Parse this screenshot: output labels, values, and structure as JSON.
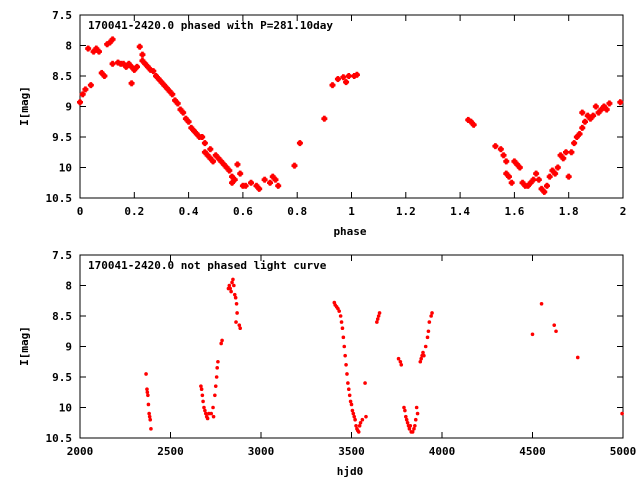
{
  "colors": {
    "points": "#ff0000",
    "frame": "#000000",
    "background": "#ffffff"
  },
  "chart_data": [
    {
      "type": "scatter",
      "title": "170041-2420.0 phased with P=281.10day",
      "xlabel": "phase",
      "ylabel": "I[mag]",
      "xlim": [
        0,
        2
      ],
      "ylim": [
        7.5,
        10.5
      ],
      "y_inverted": true,
      "grid": false,
      "x_ticks": [
        0,
        0.2,
        0.4,
        0.6,
        0.8,
        1,
        1.2,
        1.4,
        1.6,
        1.8,
        2
      ],
      "x_tick_labels": [
        "0",
        "0.2",
        "0.4",
        "0.6",
        "0.8",
        "1",
        "1.2",
        "1.4",
        "1.6",
        "1.8",
        "2"
      ],
      "y_ticks": [
        7.5,
        8,
        8.5,
        9,
        9.5,
        10,
        10.5
      ],
      "y_tick_labels": [
        "7.5",
        "8",
        "8.5",
        "9",
        "9.5",
        "10",
        "10.5"
      ],
      "marker": "cross",
      "points": [
        [
          0.0,
          8.93
        ],
        [
          0.01,
          8.8
        ],
        [
          0.02,
          8.72
        ],
        [
          0.03,
          8.05
        ],
        [
          0.04,
          8.65
        ],
        [
          0.05,
          8.1
        ],
        [
          0.06,
          8.05
        ],
        [
          0.07,
          8.1
        ],
        [
          0.08,
          8.45
        ],
        [
          0.09,
          8.5
        ],
        [
          0.1,
          7.98
        ],
        [
          0.12,
          7.9
        ],
        [
          0.11,
          7.95
        ],
        [
          0.12,
          8.3
        ],
        [
          0.14,
          8.28
        ],
        [
          0.15,
          8.3
        ],
        [
          0.16,
          8.3
        ],
        [
          0.17,
          8.35
        ],
        [
          0.18,
          8.3
        ],
        [
          0.19,
          8.62
        ],
        [
          0.19,
          8.35
        ],
        [
          0.2,
          8.4
        ],
        [
          0.21,
          8.35
        ],
        [
          0.22,
          8.02
        ],
        [
          0.23,
          8.15
        ],
        [
          0.23,
          8.25
        ],
        [
          0.24,
          8.3
        ],
        [
          0.25,
          8.35
        ],
        [
          0.26,
          8.4
        ],
        [
          0.27,
          8.42
        ],
        [
          0.28,
          8.5
        ],
        [
          0.29,
          8.55
        ],
        [
          0.3,
          8.6
        ],
        [
          0.31,
          8.65
        ],
        [
          0.32,
          8.7
        ],
        [
          0.33,
          8.75
        ],
        [
          0.34,
          8.8
        ],
        [
          0.35,
          8.9
        ],
        [
          0.36,
          8.95
        ],
        [
          0.37,
          9.05
        ],
        [
          0.38,
          9.1
        ],
        [
          0.39,
          9.2
        ],
        [
          0.4,
          9.25
        ],
        [
          0.41,
          9.35
        ],
        [
          0.42,
          9.4
        ],
        [
          0.43,
          9.45
        ],
        [
          0.44,
          9.5
        ],
        [
          0.45,
          9.5
        ],
        [
          0.46,
          9.6
        ],
        [
          0.46,
          9.75
        ],
        [
          0.47,
          9.8
        ],
        [
          0.48,
          9.7
        ],
        [
          0.48,
          9.85
        ],
        [
          0.49,
          9.9
        ],
        [
          0.5,
          9.8
        ],
        [
          0.51,
          9.85
        ],
        [
          0.52,
          9.9
        ],
        [
          0.53,
          9.95
        ],
        [
          0.54,
          10.0
        ],
        [
          0.55,
          10.05
        ],
        [
          0.56,
          10.15
        ],
        [
          0.56,
          10.25
        ],
        [
          0.57,
          10.2
        ],
        [
          0.58,
          9.95
        ],
        [
          0.59,
          10.1
        ],
        [
          0.6,
          10.3
        ],
        [
          0.61,
          10.3
        ],
        [
          0.63,
          10.25
        ],
        [
          0.65,
          10.3
        ],
        [
          0.66,
          10.35
        ],
        [
          0.68,
          10.2
        ],
        [
          0.7,
          10.25
        ],
        [
          0.71,
          10.15
        ],
        [
          0.72,
          10.2
        ],
        [
          0.73,
          10.3
        ],
        [
          0.79,
          9.97
        ],
        [
          0.81,
          9.6
        ],
        [
          0.9,
          9.2
        ],
        [
          0.93,
          8.65
        ],
        [
          0.95,
          8.55
        ],
        [
          0.97,
          8.52
        ],
        [
          0.98,
          8.6
        ],
        [
          0.99,
          8.5
        ],
        [
          1.01,
          8.5
        ],
        [
          1.02,
          8.48
        ],
        [
          1.43,
          9.22
        ],
        [
          1.44,
          9.25
        ],
        [
          1.45,
          9.3
        ],
        [
          1.53,
          9.65
        ],
        [
          1.55,
          9.7
        ],
        [
          1.56,
          9.8
        ],
        [
          1.57,
          9.9
        ],
        [
          1.57,
          10.1
        ],
        [
          1.58,
          10.15
        ],
        [
          1.59,
          10.25
        ],
        [
          1.6,
          9.9
        ],
        [
          1.61,
          9.95
        ],
        [
          1.62,
          10.0
        ],
        [
          1.63,
          10.25
        ],
        [
          1.64,
          10.3
        ],
        [
          1.65,
          10.3
        ],
        [
          1.66,
          10.25
        ],
        [
          1.67,
          10.2
        ],
        [
          1.68,
          10.1
        ],
        [
          1.69,
          10.2
        ],
        [
          1.7,
          10.35
        ],
        [
          1.71,
          10.4
        ],
        [
          1.72,
          10.3
        ],
        [
          1.73,
          10.15
        ],
        [
          1.74,
          10.05
        ],
        [
          1.75,
          10.1
        ],
        [
          1.76,
          10.0
        ],
        [
          1.77,
          9.8
        ],
        [
          1.78,
          9.85
        ],
        [
          1.79,
          9.75
        ],
        [
          1.8,
          10.15
        ],
        [
          1.81,
          9.75
        ],
        [
          1.82,
          9.6
        ],
        [
          1.83,
          9.5
        ],
        [
          1.84,
          9.45
        ],
        [
          1.85,
          9.35
        ],
        [
          1.85,
          9.1
        ],
        [
          1.86,
          9.25
        ],
        [
          1.87,
          9.15
        ],
        [
          1.88,
          9.2
        ],
        [
          1.89,
          9.15
        ],
        [
          1.9,
          9.0
        ],
        [
          1.91,
          9.1
        ],
        [
          1.92,
          9.05
        ],
        [
          1.93,
          9.0
        ],
        [
          1.94,
          9.05
        ],
        [
          1.95,
          8.95
        ],
        [
          1.99,
          8.93
        ]
      ]
    },
    {
      "type": "scatter",
      "title": "170041-2420.0 not phased light curve",
      "xlabel": "hjd0",
      "ylabel": "I[mag]",
      "xlim": [
        2000,
        5000
      ],
      "ylim": [
        7.5,
        10.5
      ],
      "y_inverted": true,
      "grid": false,
      "x_ticks": [
        2000,
        2500,
        3000,
        3500,
        4000,
        4500,
        5000
      ],
      "x_tick_labels": [
        "2000",
        "2500",
        "3000",
        "3500",
        "4000",
        "4500",
        "5000"
      ],
      "y_ticks": [
        7.5,
        8,
        8.5,
        9,
        9.5,
        10,
        10.5
      ],
      "y_tick_labels": [
        "7.5",
        "8",
        "8.5",
        "9",
        "9.5",
        "10",
        "10.5"
      ],
      "marker": "dot",
      "points": [
        [
          2365,
          9.45
        ],
        [
          2370,
          9.7
        ],
        [
          2372,
          9.75
        ],
        [
          2375,
          9.8
        ],
        [
          2378,
          9.95
        ],
        [
          2382,
          10.1
        ],
        [
          2385,
          10.15
        ],
        [
          2388,
          10.2
        ],
        [
          2392,
          10.35
        ],
        [
          2668,
          9.65
        ],
        [
          2672,
          9.7
        ],
        [
          2676,
          9.8
        ],
        [
          2680,
          9.9
        ],
        [
          2685,
          10.0
        ],
        [
          2690,
          10.05
        ],
        [
          2695,
          10.1
        ],
        [
          2700,
          10.15
        ],
        [
          2705,
          10.18
        ],
        [
          2712,
          10.1
        ],
        [
          2725,
          10.1
        ],
        [
          2735,
          10.0
        ],
        [
          2738,
          10.15
        ],
        [
          2745,
          9.8
        ],
        [
          2750,
          9.65
        ],
        [
          2755,
          9.5
        ],
        [
          2758,
          9.35
        ],
        [
          2762,
          9.25
        ],
        [
          2780,
          8.95
        ],
        [
          2785,
          8.9
        ],
        [
          2820,
          8.05
        ],
        [
          2825,
          8.0
        ],
        [
          2830,
          8.05
        ],
        [
          2835,
          8.1
        ],
        [
          2840,
          7.95
        ],
        [
          2845,
          7.9
        ],
        [
          2850,
          8.0
        ],
        [
          2855,
          8.15
        ],
        [
          2860,
          8.2
        ],
        [
          2862,
          8.6
        ],
        [
          2865,
          8.3
        ],
        [
          2868,
          8.45
        ],
        [
          2880,
          8.65
        ],
        [
          2885,
          8.7
        ],
        [
          3405,
          8.28
        ],
        [
          3410,
          8.32
        ],
        [
          3418,
          8.35
        ],
        [
          3425,
          8.38
        ],
        [
          3432,
          8.42
        ],
        [
          3440,
          8.5
        ],
        [
          3445,
          8.6
        ],
        [
          3450,
          8.7
        ],
        [
          3455,
          8.85
        ],
        [
          3460,
          9.0
        ],
        [
          3465,
          9.15
        ],
        [
          3470,
          9.3
        ],
        [
          3475,
          9.45
        ],
        [
          3480,
          9.6
        ],
        [
          3485,
          9.7
        ],
        [
          3490,
          9.8
        ],
        [
          3495,
          9.9
        ],
        [
          3500,
          9.95
        ],
        [
          3505,
          10.05
        ],
        [
          3510,
          10.1
        ],
        [
          3515,
          10.15
        ],
        [
          3520,
          10.2
        ],
        [
          3525,
          10.3
        ],
        [
          3530,
          10.35
        ],
        [
          3535,
          10.38
        ],
        [
          3540,
          10.4
        ],
        [
          3545,
          10.3
        ],
        [
          3550,
          10.25
        ],
        [
          3560,
          10.2
        ],
        [
          3575,
          9.6
        ],
        [
          3580,
          10.15
        ],
        [
          3640,
          8.6
        ],
        [
          3645,
          8.55
        ],
        [
          3650,
          8.5
        ],
        [
          3655,
          8.45
        ],
        [
          3760,
          9.2
        ],
        [
          3770,
          9.25
        ],
        [
          3775,
          9.3
        ],
        [
          3790,
          10.0
        ],
        [
          3795,
          10.05
        ],
        [
          3800,
          10.15
        ],
        [
          3805,
          10.2
        ],
        [
          3810,
          10.25
        ],
        [
          3815,
          10.3
        ],
        [
          3820,
          10.35
        ],
        [
          3825,
          10.3
        ],
        [
          3830,
          10.4
        ],
        [
          3838,
          10.4
        ],
        [
          3845,
          10.35
        ],
        [
          3850,
          10.3
        ],
        [
          3855,
          10.2
        ],
        [
          3860,
          10.0
        ],
        [
          3865,
          10.1
        ],
        [
          3880,
          9.25
        ],
        [
          3885,
          9.2
        ],
        [
          3890,
          9.15
        ],
        [
          3895,
          9.1
        ],
        [
          3900,
          9.15
        ],
        [
          3910,
          9.0
        ],
        [
          3920,
          8.85
        ],
        [
          3925,
          8.75
        ],
        [
          3930,
          8.6
        ],
        [
          3940,
          8.5
        ],
        [
          3945,
          8.45
        ],
        [
          4500,
          8.8
        ],
        [
          4550,
          8.3
        ],
        [
          4620,
          8.65
        ],
        [
          4630,
          8.75
        ],
        [
          4750,
          9.18
        ],
        [
          4995,
          10.1
        ]
      ]
    }
  ]
}
